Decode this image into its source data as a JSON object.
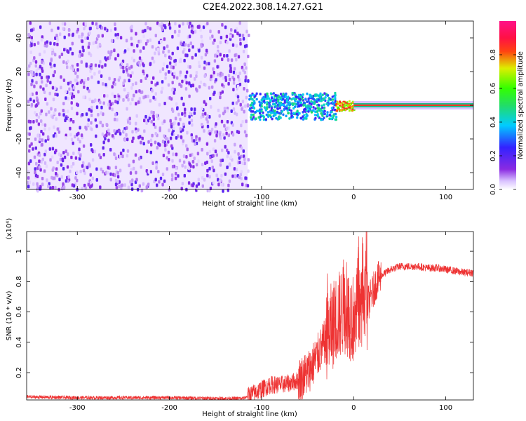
{
  "title": "C2E4.2022.308.14.27.G21",
  "chart_data": [
    {
      "type": "heatmap",
      "xlabel": "Height of straight line (km)",
      "ylabel": "Frequency (Hz)",
      "xlim": [
        -355,
        130
      ],
      "ylim": [
        -50,
        50
      ],
      "xticks": [
        -300,
        -200,
        -100,
        0,
        100
      ],
      "yticks": [
        -40,
        -20,
        0,
        20,
        40
      ],
      "colorbar": {
        "label": "Normalized spectral amplitude",
        "range": [
          0.0,
          1.0
        ],
        "ticks": [
          0.0,
          0.2,
          0.4,
          0.6,
          0.8
        ],
        "colormap": "rainbow (white → purple → blue → cyan → green → yellow → red → magenta)"
      },
      "regions": [
        {
          "x": [
            -355,
            -115
          ],
          "y": [
            -50,
            50
          ],
          "pattern": "broadband speckle noise",
          "amplitude": [
            0.05,
            0.2
          ]
        },
        {
          "x": [
            -115,
            -20
          ],
          "y": [
            -8,
            8
          ],
          "pattern": "speckle band around 0 Hz",
          "amplitude": [
            0.2,
            0.5
          ]
        },
        {
          "x": [
            -20,
            0
          ],
          "y": [
            -3,
            3
          ],
          "pattern": "narrowing line around 0 Hz",
          "amplitude": [
            0.6,
            0.9
          ]
        },
        {
          "x": [
            0,
            130
          ],
          "y": [
            -2,
            2
          ],
          "pattern": "narrow constant line at 0 Hz",
          "amplitude": [
            0.9,
            1.0
          ]
        }
      ]
    },
    {
      "type": "line",
      "xlabel": "Height of straight line (km)",
      "ylabel": "SNR (10 * v/v)",
      "y_multiplier": "(x10⁴)",
      "xlim": [
        -355,
        130
      ],
      "ylim": [
        0.02,
        1.13
      ],
      "xticks": [
        -300,
        -200,
        -100,
        0,
        100
      ],
      "yticks": [
        0.2,
        0.4,
        0.6,
        0.8,
        1
      ],
      "series": [
        {
          "color": "#ee3333",
          "points": [
            [
              -355,
              0.04
            ],
            [
              -300,
              0.035
            ],
            [
              -250,
              0.035
            ],
            [
              -200,
              0.035
            ],
            [
              -150,
              0.03
            ],
            [
              -120,
              0.03
            ],
            [
              -110,
              0.06
            ],
            [
              -100,
              0.09
            ],
            [
              -90,
              0.12
            ],
            [
              -80,
              0.12
            ],
            [
              -70,
              0.13
            ],
            [
              -60,
              0.15
            ],
            [
              -50,
              0.2
            ],
            [
              -40,
              0.3
            ],
            [
              -30,
              0.42
            ],
            [
              -20,
              0.55
            ],
            [
              -10,
              0.62
            ],
            [
              0,
              0.55
            ],
            [
              5,
              0.65
            ],
            [
              10,
              0.6
            ],
            [
              15,
              0.65
            ],
            [
              20,
              0.72
            ],
            [
              25,
              0.8
            ],
            [
              30,
              0.84
            ],
            [
              40,
              0.88
            ],
            [
              50,
              0.9
            ],
            [
              60,
              0.9
            ],
            [
              70,
              0.9
            ],
            [
              80,
              0.89
            ],
            [
              90,
              0.89
            ],
            [
              100,
              0.88
            ],
            [
              110,
              0.87
            ],
            [
              120,
              0.86
            ],
            [
              130,
              0.86
            ]
          ]
        }
      ]
    }
  ]
}
